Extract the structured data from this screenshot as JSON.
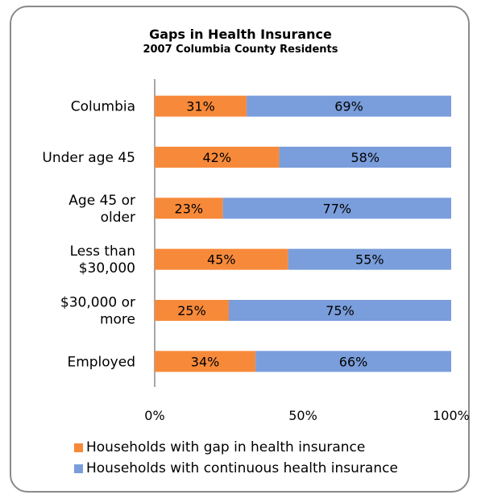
{
  "chart_data": {
    "type": "bar",
    "stacked": true,
    "orientation": "horizontal",
    "title": "Gaps in Health Insurance",
    "subtitle": "2007 Columbia County Residents",
    "categories": [
      [
        "Columbia"
      ],
      [
        "Under age 45"
      ],
      [
        "Age 45 or",
        "older"
      ],
      [
        "Less than",
        "$30,000"
      ],
      [
        "$30,000 or",
        "more"
      ],
      [
        "Employed"
      ]
    ],
    "series": [
      {
        "name": "Households with gap in health insurance",
        "color": "#f78a3a",
        "values": [
          31,
          42,
          23,
          45,
          25,
          34
        ]
      },
      {
        "name": "Households with continuous health insurance",
        "color": "#7a9ddb",
        "values": [
          69,
          58,
          77,
          55,
          75,
          66
        ]
      }
    ],
    "xlim": [
      0,
      100
    ],
    "xticks": [
      "0%",
      "50%",
      "100%"
    ],
    "value_suffix": "%",
    "legend_position": "bottom",
    "grid": false
  }
}
